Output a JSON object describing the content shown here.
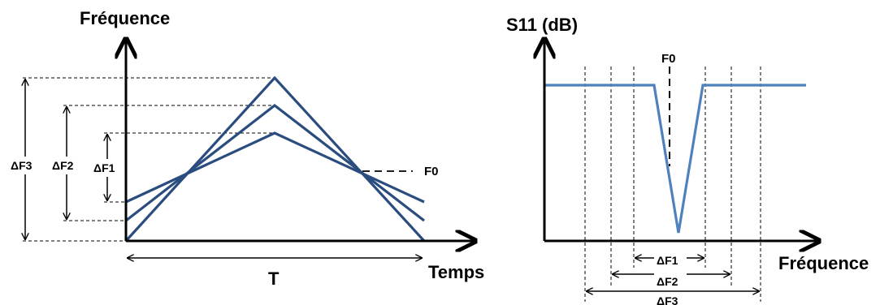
{
  "left_diagram": {
    "y_axis_label": "Fréquence",
    "x_axis_label": "Temps",
    "period_label": "T",
    "center_freq_label": "F0",
    "deviation_labels": [
      "ΔF1",
      "ΔF2",
      "ΔF3"
    ],
    "line_color": "#2b4c7e"
  },
  "right_diagram": {
    "y_axis_label": "S11 (dB)",
    "x_axis_label": "Fréquence",
    "center_freq_label": "F0",
    "bandwidth_labels": [
      "ΔF1",
      "ΔF2",
      "ΔF3"
    ],
    "curve_color": "#4f81bd"
  }
}
